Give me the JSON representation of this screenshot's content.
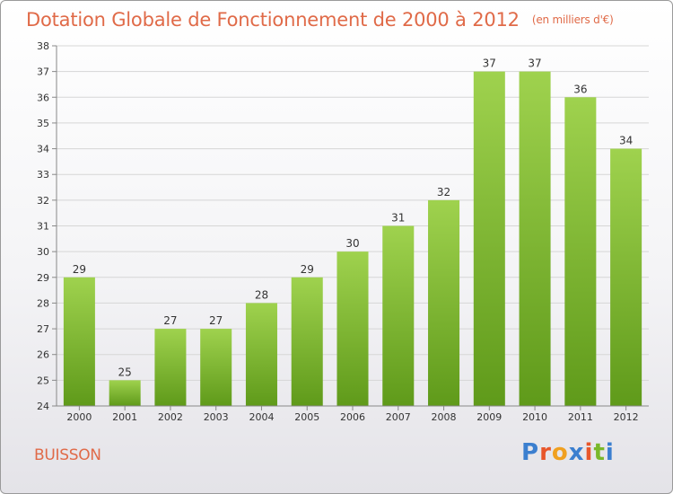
{
  "title": "Dotation Globale de Fonctionnement de 2000 à 2012",
  "title_unit": "(en milliers d'€)",
  "commune": "BUISSON",
  "brand": {
    "letters": [
      "P",
      "r",
      "o",
      "x",
      "i",
      "t",
      "i"
    ],
    "colors": [
      "#3b7fcf",
      "#e8562a",
      "#f0a020",
      "#3b7fcf",
      "#e8562a",
      "#7ab82a",
      "#3b7fcf"
    ]
  },
  "chart_data": {
    "type": "bar",
    "title": "Dotation Globale de Fonctionnement de 2000 à 2012",
    "subtitle": "(en milliers d'€)",
    "categories": [
      "2000",
      "2001",
      "2002",
      "2003",
      "2004",
      "2005",
      "2006",
      "2007",
      "2008",
      "2009",
      "2010",
      "2011",
      "2012"
    ],
    "values": [
      29,
      25,
      27,
      27,
      28,
      29,
      30,
      31,
      32,
      37,
      37,
      36,
      34
    ],
    "ylim": [
      24,
      38
    ],
    "yticks": [
      24,
      25,
      26,
      27,
      28,
      29,
      30,
      31,
      32,
      33,
      34,
      35,
      36,
      37,
      38
    ],
    "grid": true,
    "bar_color": "#8cc63f",
    "bar_color_dark": "#5f9a1a"
  }
}
